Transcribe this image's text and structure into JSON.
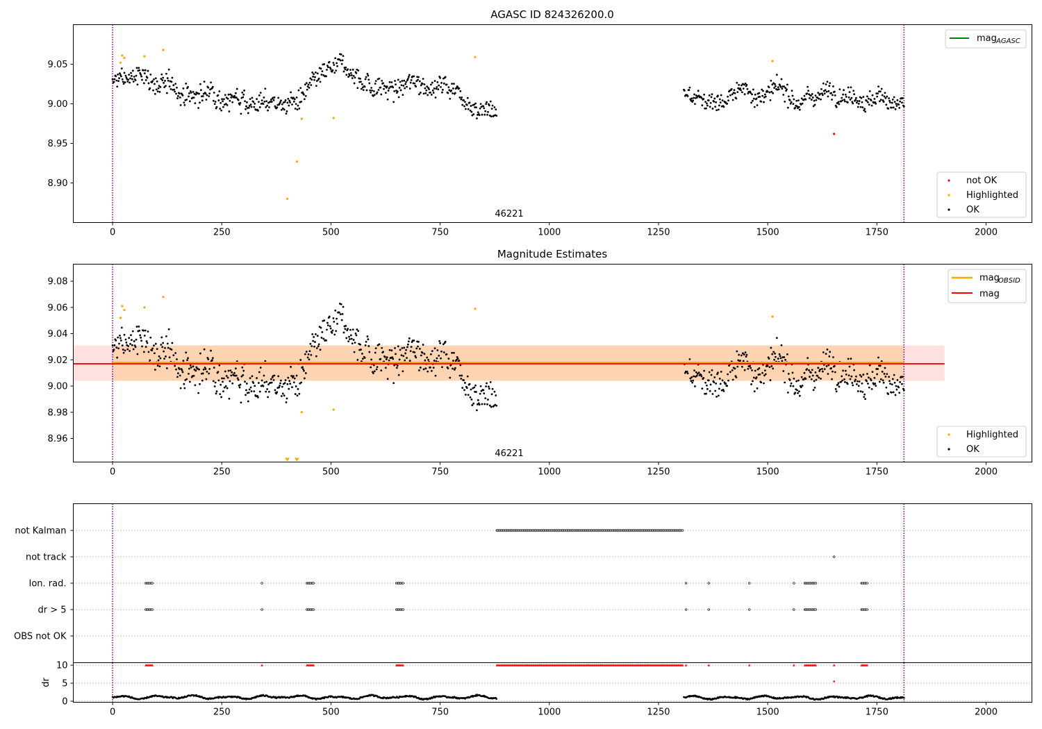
{
  "chart_data": [
    {
      "type": "scatter",
      "title": "AGASC ID 824326200.0",
      "xlabel": "",
      "ylabel": "",
      "xlim": [
        -90,
        2105
      ],
      "ylim": [
        8.85,
        9.1
      ],
      "x_ticks": [
        0,
        250,
        500,
        750,
        1000,
        1250,
        1500,
        1750,
        2000
      ],
      "y_ticks": [
        8.9,
        8.95,
        9.0,
        9.05
      ],
      "vlines": [
        0,
        1812
      ],
      "annotation": {
        "text": "46221",
        "x": 906
      },
      "line_legend": {
        "name": "mag",
        "sub": "AGASC",
        "color": "#008000",
        "position": "upper right"
      },
      "point_legend": {
        "position": "lower right",
        "entries": [
          {
            "name": "not OK",
            "color": "#ff0000"
          },
          {
            "name": "Highlighted",
            "color": "#ffa500"
          },
          {
            "name": "OK",
            "color": "#000000"
          }
        ]
      },
      "ok_segments": [
        {
          "x": [
            0,
            880
          ],
          "center": 9.019,
          "spread": 0.014
        },
        {
          "x": [
            1308,
            1812
          ],
          "center": 9.016,
          "spread": 0.012
        }
      ],
      "highlighted": [
        [
          18,
          9.052
        ],
        [
          22,
          9.061
        ],
        [
          27,
          9.058
        ],
        [
          73,
          9.06
        ],
        [
          116,
          9.068
        ],
        [
          400,
          8.88
        ],
        [
          422,
          8.927
        ],
        [
          433,
          8.981
        ],
        [
          506,
          8.982
        ],
        [
          830,
          9.059
        ],
        [
          1511,
          9.054
        ]
      ],
      "not_ok": [
        [
          1652,
          8.962
        ]
      ]
    },
    {
      "type": "scatter",
      "title": "Magnitude Estimates",
      "xlabel": "",
      "ylabel": "",
      "xlim": [
        -90,
        2105
      ],
      "ylim": [
        8.942,
        9.093
      ],
      "x_ticks": [
        0,
        250,
        500,
        750,
        1000,
        1250,
        1500,
        1750,
        2000
      ],
      "y_ticks": [
        8.96,
        8.98,
        9.0,
        9.02,
        9.04,
        9.06,
        9.08
      ],
      "vlines": [
        0,
        1812
      ],
      "annotation": {
        "text": "46221",
        "x": 906
      },
      "line_legend": [
        {
          "name": "mag",
          "sub": "OBSID",
          "color": "#ffa500"
        },
        {
          "name": "mag",
          "sub": "",
          "color": "#ff0000"
        }
      ],
      "point_legend": {
        "position": "lower right",
        "entries": [
          {
            "name": "Highlighted",
            "color": "#ffa500"
          },
          {
            "name": "OK",
            "color": "#000000"
          }
        ]
      },
      "mag": 9.017,
      "mag_band": [
        9.004,
        9.031
      ],
      "mag_band_xlim": [
        -90,
        1905
      ],
      "obsid_mag": 9.018,
      "obsid_band": [
        9.004,
        9.031
      ],
      "obsid_xlim": [
        0,
        1812
      ],
      "ok_segments": [
        {
          "x": [
            0,
            880
          ],
          "center": 9.019,
          "spread": 0.014
        },
        {
          "x": [
            1308,
            1812
          ],
          "center": 9.016,
          "spread": 0.012
        }
      ],
      "highlighted": [
        [
          18,
          9.052
        ],
        [
          22,
          9.061
        ],
        [
          27,
          9.058
        ],
        [
          73,
          9.06
        ],
        [
          116,
          9.068
        ],
        [
          433,
          8.98
        ],
        [
          506,
          8.982
        ],
        [
          830,
          9.059
        ],
        [
          1511,
          9.053
        ]
      ],
      "below_axis_markers": [
        400,
        422
      ]
    },
    {
      "type": "scatter",
      "title": "",
      "categories": [
        "not Kalman",
        "not track",
        "Ion. rad.",
        "dr > 5",
        "OBS not OK"
      ],
      "xlim": [
        -90,
        2105
      ],
      "vlines": [
        0,
        1812
      ],
      "flag_ranges": {
        "not Kalman": [
          [
            880,
            1305
          ]
        ],
        "not track": [
          [
            1652,
            1652
          ]
        ],
        "Ion. rad.": [
          [
            76,
            92
          ],
          [
            342,
            342
          ],
          [
            445,
            462
          ],
          [
            650,
            665
          ],
          [
            1313,
            1313
          ],
          [
            1365,
            1365
          ],
          [
            1458,
            1458
          ],
          [
            1560,
            1562
          ],
          [
            1585,
            1612
          ],
          [
            1715,
            1728
          ]
        ],
        "dr > 5": [
          [
            76,
            92
          ],
          [
            342,
            342
          ],
          [
            445,
            462
          ],
          [
            650,
            665
          ],
          [
            1313,
            1313
          ],
          [
            1365,
            1365
          ],
          [
            1458,
            1458
          ],
          [
            1560,
            1562
          ],
          [
            1585,
            1612
          ],
          [
            1715,
            1728
          ]
        ],
        "OBS not OK": []
      }
    },
    {
      "type": "scatter",
      "title": "",
      "xlabel": "",
      "ylabel": "dr",
      "xlim": [
        -90,
        2105
      ],
      "ylim": [
        -0.3,
        10.7
      ],
      "x_ticks": [
        0,
        250,
        500,
        750,
        1000,
        1250,
        1500,
        1750,
        2000
      ],
      "y_ticks": [
        0,
        5,
        10
      ],
      "vlines": [
        0,
        1812
      ],
      "dr_segments": [
        {
          "x": [
            0,
            880
          ],
          "base": 1.1,
          "amp": 0.55
        },
        {
          "x": [
            1308,
            1812
          ],
          "base": 1.0,
          "amp": 0.5
        }
      ],
      "dr_outliers": [
        [
          1652,
          5.5
        ]
      ],
      "clipped_at_10": [
        [
          76,
          92
        ],
        [
          342,
          342
        ],
        [
          445,
          462
        ],
        [
          650,
          665
        ],
        [
          880,
          1305
        ],
        [
          1313,
          1313
        ],
        [
          1365,
          1365
        ],
        [
          1458,
          1458
        ],
        [
          1560,
          1562
        ],
        [
          1585,
          1612
        ],
        [
          1652,
          1652
        ],
        [
          1715,
          1728
        ]
      ]
    }
  ]
}
